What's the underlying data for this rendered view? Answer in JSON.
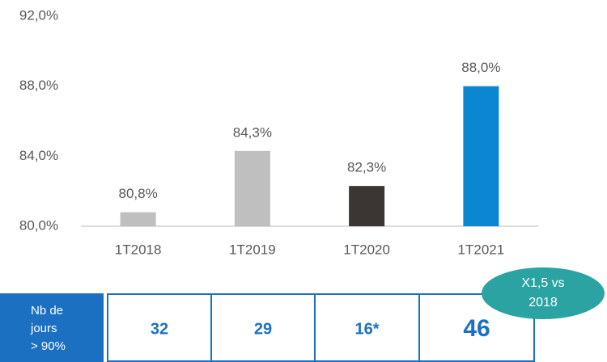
{
  "chart_data": {
    "type": "bar",
    "categories": [
      "1T2018",
      "1T2019",
      "1T2020",
      "1T2021"
    ],
    "values": [
      80.8,
      84.3,
      82.3,
      88.0
    ],
    "value_labels": [
      "80,8%",
      "84,3%",
      "82,3%",
      "88,0%"
    ],
    "colors": [
      "#bfbfbf",
      "#bfbfbf",
      "#3b3633",
      "#0b86d1"
    ],
    "ylim": [
      80,
      92
    ],
    "yticks": [
      {
        "value": 80,
        "label": "80,0%"
      },
      {
        "value": 84,
        "label": "84,0%"
      },
      {
        "value": 88,
        "label": "88,0%"
      },
      {
        "value": 92,
        "label": "92,0%"
      }
    ]
  },
  "days_table": {
    "label": [
      "Nb de",
      "jours",
      "> 90%"
    ],
    "cells": [
      "32",
      "29",
      "16*",
      "46"
    ]
  },
  "badge": [
    "X1,5 vs",
    "2018"
  ]
}
